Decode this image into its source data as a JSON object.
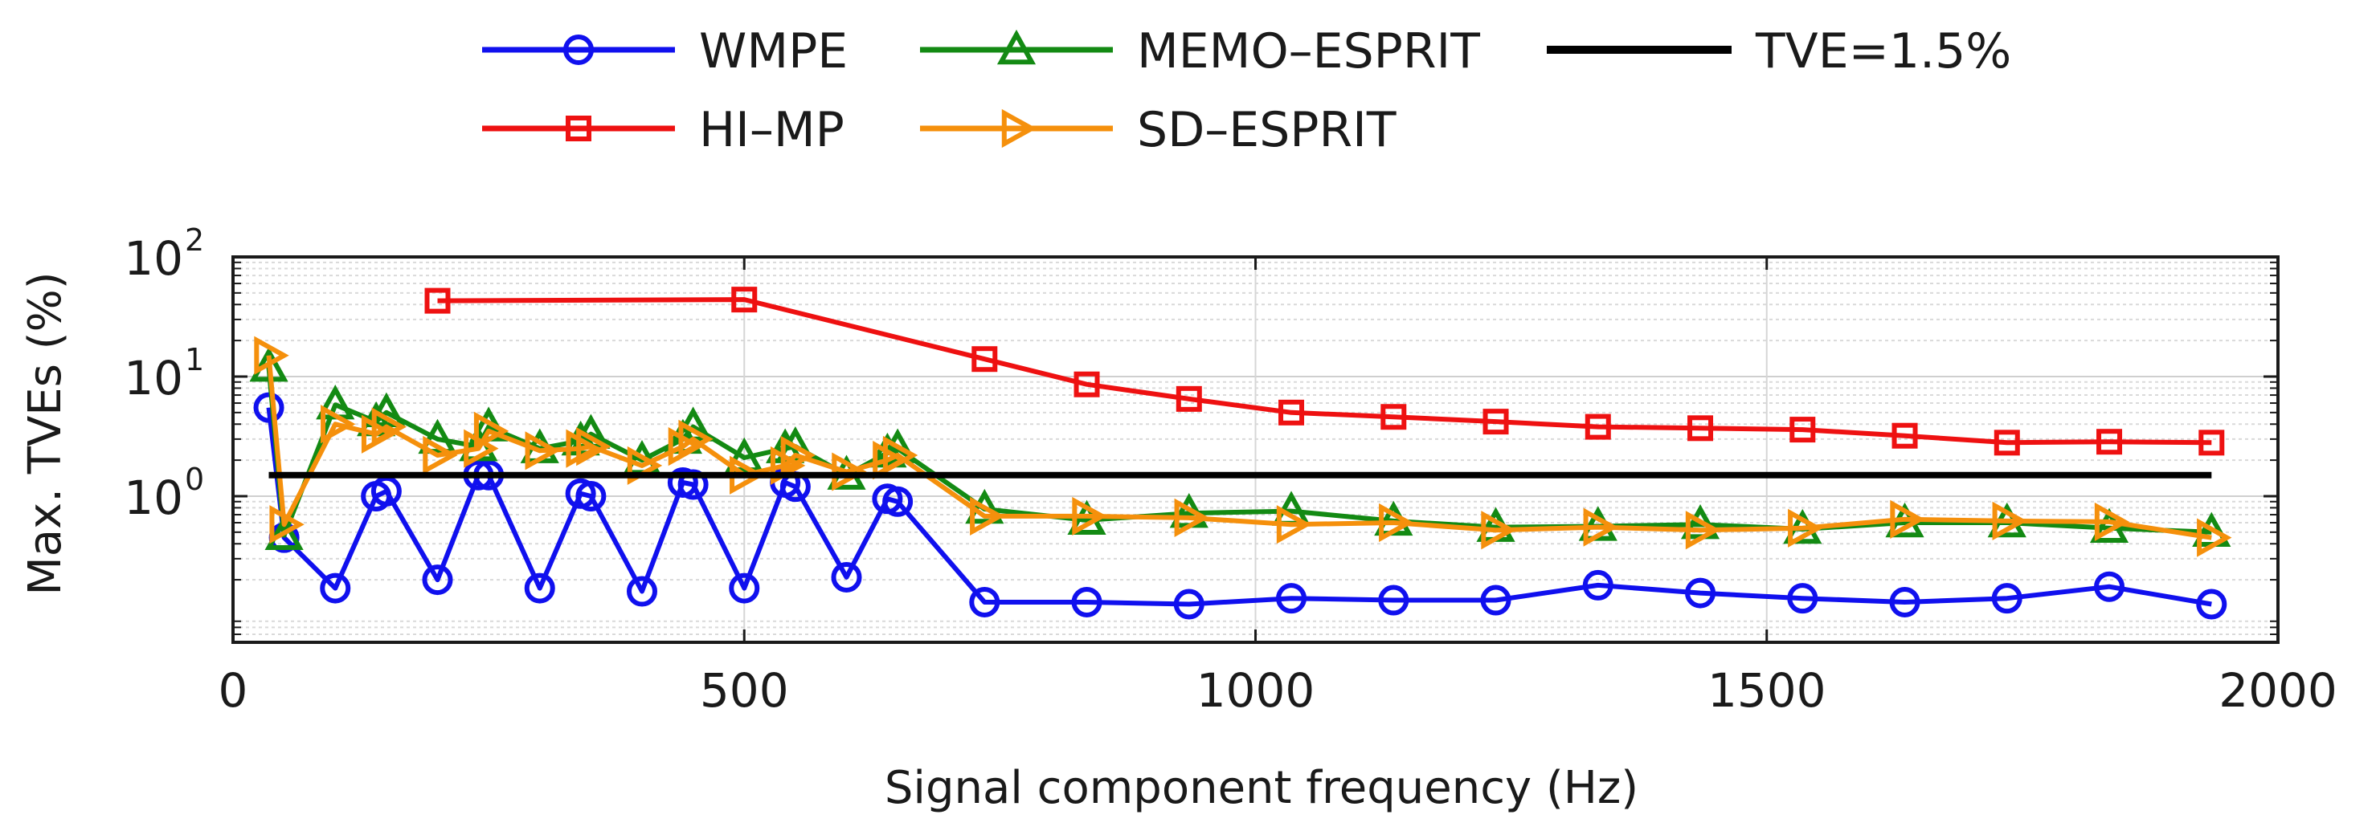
{
  "chart_data": {
    "type": "line",
    "title": "",
    "xlabel": "Signal component frequency (Hz)",
    "ylabel": "Max. TVEs (%)",
    "xlim": [
      0,
      2000
    ],
    "ylim": [
      0.06,
      100
    ],
    "yscale": "log",
    "grid": true,
    "legend_position": "top",
    "x_ticks": [
      0,
      500,
      1000,
      1500,
      2000
    ],
    "x_tick_labels": [
      "0",
      "500",
      "1000",
      "1500",
      "2000"
    ],
    "y_ticks": [
      {
        "value": 1,
        "base": "10",
        "exp": "0"
      },
      {
        "value": 10,
        "base": "10",
        "exp": "1"
      },
      {
        "value": 100,
        "base": "10",
        "exp": "2"
      }
    ],
    "colors": {
      "WMPE": "#1010ee",
      "MEMO-ESPRIT": "#138a13",
      "TVE": "#000000",
      "HI-MP": "#ee1111",
      "SD-ESPRIT": "#f5900c"
    },
    "series": [
      {
        "name": "WMPE",
        "marker": "circle",
        "x": [
          35,
          50,
          100,
          140,
          150,
          200,
          240,
          250,
          300,
          340,
          350,
          400,
          440,
          450,
          500,
          540,
          550,
          600,
          640,
          650,
          735,
          835,
          935,
          1035,
          1135,
          1235,
          1335,
          1435,
          1535,
          1635,
          1735,
          1835,
          1935
        ],
        "values": [
          5.5,
          0.45,
          0.17,
          1.0,
          1.1,
          0.2,
          1.5,
          1.5,
          0.17,
          1.05,
          1.0,
          0.16,
          1.3,
          1.25,
          0.17,
          1.3,
          1.2,
          0.21,
          0.95,
          0.9,
          0.13,
          0.13,
          0.125,
          0.14,
          0.135,
          0.135,
          0.18,
          0.155,
          0.14,
          0.13,
          0.14,
          0.175,
          0.125
        ]
      },
      {
        "name": "HI-MP",
        "marker": "square",
        "x": [
          200,
          500,
          735,
          835,
          935,
          1035,
          1135,
          1235,
          1335,
          1435,
          1535,
          1635,
          1735,
          1835,
          1935
        ],
        "values": [
          43,
          44,
          14,
          8.6,
          6.5,
          5.0,
          4.6,
          4.2,
          3.8,
          3.7,
          3.6,
          3.2,
          2.8,
          2.85,
          2.8
        ]
      },
      {
        "name": "MEMO-ESPRIT",
        "marker": "triangle-up",
        "x": [
          35,
          50,
          100,
          140,
          150,
          200,
          240,
          250,
          300,
          340,
          350,
          400,
          440,
          450,
          500,
          540,
          550,
          600,
          640,
          650,
          735,
          835,
          935,
          1035,
          1135,
          1235,
          1335,
          1435,
          1535,
          1635,
          1735,
          1835,
          1935
        ],
        "values": [
          12,
          0.47,
          5.8,
          4.2,
          5.0,
          3.0,
          2.6,
          3.8,
          2.5,
          2.9,
          3.3,
          2.0,
          3.0,
          3.8,
          2.1,
          2.5,
          2.6,
          1.5,
          2.3,
          2.5,
          0.78,
          0.63,
          0.72,
          0.75,
          0.62,
          0.55,
          0.56,
          0.58,
          0.53,
          0.6,
          0.6,
          0.54,
          0.5
        ]
      },
      {
        "name": "SD-ESPRIT",
        "marker": "triangle-right",
        "x": [
          35,
          50,
          100,
          140,
          150,
          200,
          240,
          250,
          300,
          340,
          350,
          400,
          440,
          450,
          500,
          540,
          550,
          600,
          640,
          650,
          735,
          835,
          935,
          1035,
          1135,
          1235,
          1335,
          1435,
          1535,
          1635,
          1735,
          1835,
          1935
        ],
        "values": [
          15,
          0.58,
          4.0,
          3.3,
          3.8,
          2.2,
          2.5,
          3.5,
          2.4,
          2.5,
          2.6,
          1.8,
          2.6,
          3.0,
          1.5,
          1.8,
          2.2,
          1.6,
          2.0,
          2.2,
          0.68,
          0.68,
          0.66,
          0.58,
          0.6,
          0.52,
          0.55,
          0.52,
          0.54,
          0.64,
          0.62,
          0.61,
          0.45
        ]
      },
      {
        "name": "TVE=1.5%",
        "marker": "none",
        "x": [
          35,
          1935
        ],
        "values": [
          1.5,
          1.5
        ]
      }
    ],
    "legend": [
      {
        "label": "WMPE",
        "series": "WMPE",
        "marker": "circle"
      },
      {
        "label": "MEMO–ESPRIT",
        "series": "MEMO-ESPRIT",
        "marker": "triangle-up"
      },
      {
        "label": "TVE=1.5%",
        "series": "TVE",
        "marker": "none"
      },
      {
        "label": "HI–MP",
        "series": "HI-MP",
        "marker": "square"
      },
      {
        "label": "SD–ESPRIT",
        "series": "SD-ESPRIT",
        "marker": "triangle-right"
      }
    ]
  }
}
